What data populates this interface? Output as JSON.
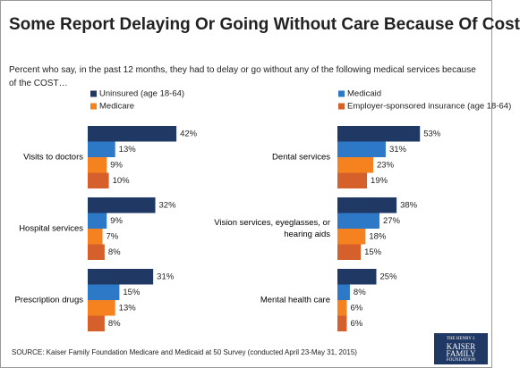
{
  "title": "Some Report Delaying Or Going Without Care Because Of Cost",
  "subtitle": "Percent who say, in the past 12 months, they had to delay or go without any of the following medical services because of the COST…",
  "source": "SOURCE: Kaiser Family Foundation Medicare and Medicaid at 50 Survey (conducted April 23-May 31, 2015)",
  "logo": [
    "THE HENRY J.",
    "KAISER",
    "FAMILY",
    "FOUNDATION"
  ],
  "chart_data": {
    "type": "bar",
    "orientation": "horizontal",
    "categories": [
      "Visits to doctors",
      "Hospital services",
      "Prescription drugs",
      "Dental services",
      "Vision services, eyeglasses, or hearing aids",
      "Mental health care"
    ],
    "series": [
      {
        "name": "Uninsured (age 18-64)",
        "color": "#1f3864",
        "values": [
          42,
          32,
          31,
          53,
          38,
          25
        ],
        "value_labels": [
          "42%",
          "32%",
          "31%",
          "53%",
          "38%",
          "25%"
        ]
      },
      {
        "name": "Medicaid",
        "color": "#2e78c8",
        "values": [
          13,
          9,
          15,
          31,
          27,
          8
        ],
        "value_labels": [
          "13%",
          "9%",
          "15%",
          "31%",
          "27%",
          "8%"
        ]
      },
      {
        "name": "Medicare",
        "color": "#f5821f",
        "values": [
          9,
          7,
          13,
          23,
          18,
          6
        ],
        "value_labels": [
          "9%",
          "7%",
          "13%",
          "23%",
          "18%",
          "6%"
        ]
      },
      {
        "name": "Employer-sponsored insurance (age 18-64)",
        "color": "#d6602c",
        "values": [
          10,
          8,
          8,
          19,
          15,
          6
        ],
        "value_labels": [
          "10%",
          "8%",
          "8%",
          "19%",
          "15%",
          "6%"
        ]
      }
    ]
  }
}
